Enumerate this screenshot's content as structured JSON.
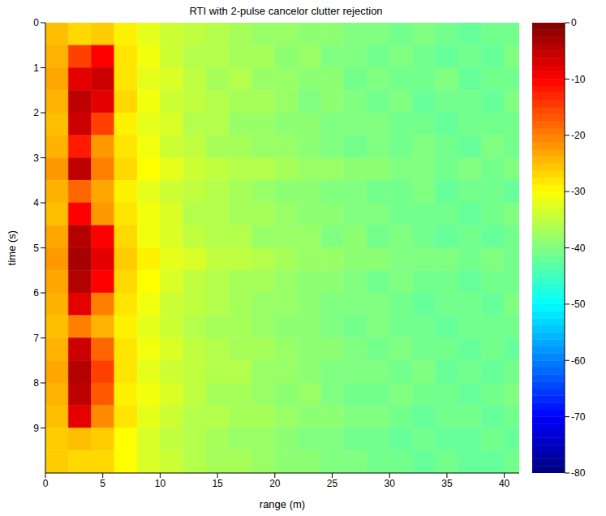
{
  "chart_data": {
    "type": "heatmap",
    "title": "RTI with 2-pulse cancelor clutter rejection",
    "x_label": "range (m)",
    "y_label": "time (s)",
    "xlim": [
      0,
      41.3
    ],
    "xticks": [
      0,
      5,
      10,
      15,
      20,
      25,
      30,
      35,
      40
    ],
    "ylim": [
      0,
      10
    ],
    "yticks": [
      0,
      1,
      2,
      3,
      4,
      5,
      6,
      7,
      8,
      9
    ],
    "x_bins": [
      0,
      2,
      4,
      6,
      8,
      10,
      12,
      14,
      16,
      18,
      20,
      22,
      24,
      26,
      28,
      30,
      32,
      34,
      36,
      38,
      40,
      41.3
    ],
    "y_bins": [
      0,
      0.5,
      1,
      1.5,
      2,
      2.5,
      3,
      3.5,
      4,
      4.5,
      5,
      5.5,
      6,
      6.5,
      7,
      7.5,
      8,
      8.5,
      9,
      9.5,
      10
    ],
    "cells": [
      [
        -25,
        -27,
        -26,
        -29,
        -32,
        -34,
        -35,
        -36,
        -37,
        -38,
        -38,
        -39,
        -39,
        -40,
        -40,
        -41,
        -40,
        -41,
        -42,
        -41,
        -41
      ],
      [
        -24,
        -15,
        -10,
        -28,
        -31,
        -34,
        -36,
        -36,
        -37,
        -37,
        -39,
        -38,
        -40,
        -40,
        -41,
        -40,
        -41,
        -42,
        -41,
        -42,
        -40
      ],
      [
        -23,
        -8,
        -6,
        -28,
        -32,
        -33,
        -35,
        -37,
        -36,
        -38,
        -38,
        -39,
        -39,
        -41,
        -40,
        -41,
        -41,
        -40,
        -42,
        -41,
        -41
      ],
      [
        -24,
        -5,
        -8,
        -27,
        -31,
        -34,
        -35,
        -36,
        -37,
        -37,
        -38,
        -40,
        -39,
        -40,
        -41,
        -40,
        -42,
        -41,
        -41,
        -42,
        -40
      ],
      [
        -25,
        -6,
        -15,
        -29,
        -32,
        -33,
        -36,
        -36,
        -38,
        -38,
        -39,
        -39,
        -40,
        -40,
        -40,
        -41,
        -41,
        -42,
        -41,
        -41,
        -41
      ],
      [
        -24,
        -12,
        -22,
        -28,
        -31,
        -34,
        -35,
        -37,
        -37,
        -38,
        -38,
        -39,
        -40,
        -41,
        -40,
        -41,
        -40,
        -41,
        -42,
        -40,
        -41
      ],
      [
        -22,
        -5,
        -20,
        -27,
        -30,
        -32,
        -34,
        -35,
        -36,
        -36,
        -37,
        -38,
        -38,
        -39,
        -39,
        -40,
        -40,
        -41,
        -40,
        -41,
        -40
      ],
      [
        -24,
        -18,
        -23,
        -29,
        -32,
        -34,
        -35,
        -36,
        -37,
        -38,
        -39,
        -39,
        -40,
        -40,
        -41,
        -41,
        -40,
        -42,
        -41,
        -41,
        -42
      ],
      [
        -25,
        -10,
        -22,
        -28,
        -31,
        -33,
        -36,
        -36,
        -37,
        -37,
        -38,
        -39,
        -39,
        -40,
        -40,
        -41,
        -41,
        -41,
        -42,
        -41,
        -40
      ],
      [
        -23,
        -4,
        -10,
        -27,
        -31,
        -33,
        -35,
        -36,
        -36,
        -38,
        -38,
        -38,
        -40,
        -39,
        -41,
        -40,
        -41,
        -42,
        -41,
        -42,
        -41
      ],
      [
        -22,
        -3,
        -8,
        -26,
        -29,
        -32,
        -33,
        -35,
        -35,
        -36,
        -37,
        -38,
        -38,
        -39,
        -39,
        -40,
        -40,
        -40,
        -41,
        -40,
        -41
      ],
      [
        -23,
        -4,
        -10,
        -27,
        -30,
        -33,
        -35,
        -36,
        -37,
        -37,
        -38,
        -39,
        -39,
        -40,
        -41,
        -40,
        -41,
        -41,
        -42,
        -41,
        -41
      ],
      [
        -24,
        -8,
        -20,
        -28,
        -31,
        -34,
        -35,
        -36,
        -37,
        -38,
        -38,
        -39,
        -40,
        -40,
        -40,
        -41,
        -42,
        -41,
        -41,
        -42,
        -40
      ],
      [
        -25,
        -20,
        -24,
        -29,
        -32,
        -34,
        -36,
        -37,
        -37,
        -38,
        -39,
        -39,
        -40,
        -41,
        -40,
        -41,
        -41,
        -42,
        -41,
        -41,
        -41
      ],
      [
        -24,
        -6,
        -18,
        -28,
        -31,
        -33,
        -35,
        -36,
        -37,
        -37,
        -38,
        -39,
        -39,
        -40,
        -41,
        -40,
        -41,
        -41,
        -42,
        -41,
        -42
      ],
      [
        -23,
        -4,
        -15,
        -28,
        -32,
        -34,
        -35,
        -36,
        -36,
        -38,
        -38,
        -39,
        -40,
        -40,
        -40,
        -41,
        -40,
        -42,
        -41,
        -42,
        -41
      ],
      [
        -24,
        -5,
        -17,
        -29,
        -31,
        -33,
        -35,
        -37,
        -37,
        -38,
        -39,
        -38,
        -40,
        -41,
        -41,
        -40,
        -41,
        -41,
        -42,
        -41,
        -40
      ],
      [
        -25,
        -8,
        -21,
        -28,
        -32,
        -34,
        -36,
        -36,
        -37,
        -37,
        -38,
        -39,
        -39,
        -40,
        -40,
        -41,
        -42,
        -41,
        -41,
        -42,
        -41
      ],
      [
        -26,
        -25,
        -26,
        -30,
        -33,
        -35,
        -36,
        -37,
        -38,
        -38,
        -39,
        -40,
        -40,
        -41,
        -41,
        -42,
        -41,
        -42,
        -42,
        -41,
        -42
      ],
      [
        -26,
        -27,
        -27,
        -30,
        -33,
        -34,
        -36,
        -37,
        -37,
        -38,
        -39,
        -39,
        -40,
        -40,
        -41,
        -41,
        -42,
        -41,
        -42,
        -42,
        -41
      ]
    ],
    "colorbar_range": [
      -80,
      0
    ],
    "colorbar_ticks": [
      0,
      -10,
      -20,
      -30,
      -40,
      -50,
      -60,
      -70,
      -80
    ]
  }
}
